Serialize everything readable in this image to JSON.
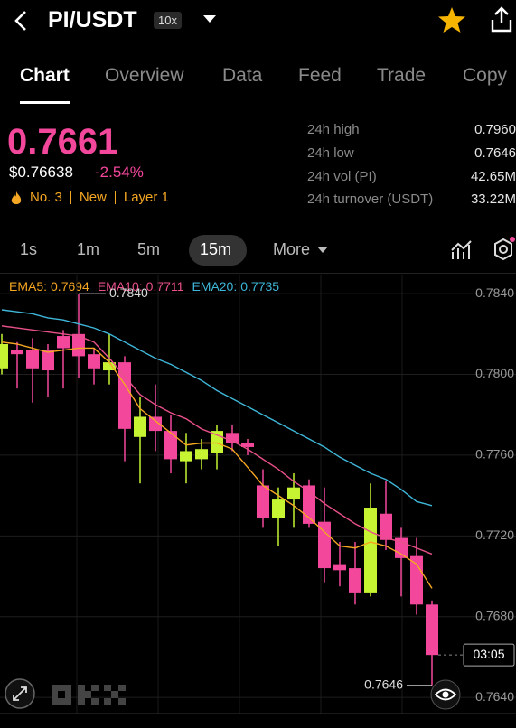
{
  "header": {
    "pair": "PI/USDT",
    "leverage": "10x"
  },
  "tabs": [
    "Chart",
    "Overview",
    "Data",
    "Feed",
    "Trade",
    "Copy"
  ],
  "price": {
    "last": "0.7661",
    "usd": "$0.76638",
    "change": "-2.54%",
    "tags": [
      "No. 3",
      "New",
      "Layer 1"
    ]
  },
  "stats": [
    {
      "label": "24h high",
      "value": "0.7960"
    },
    {
      "label": "24h low",
      "value": "0.7646"
    },
    {
      "label": "24h vol (PI)",
      "value": "42.65M"
    },
    {
      "label": "24h turnover (USDT)",
      "value": "33.22M"
    }
  ],
  "intervals": [
    "1s",
    "1m",
    "5m",
    "15m",
    "More"
  ],
  "chart_data": {
    "type": "candlestick",
    "up_color": "#c6f432",
    "down_color": "#f2479b",
    "open": [
      0.7803,
      0.7812,
      0.7812,
      0.7812,
      0.7819,
      0.782,
      0.781,
      0.7802,
      0.7806,
      0.7769,
      0.7779,
      0.7772,
      0.7757,
      0.7758,
      0.7761,
      0.7771,
      0.7766,
      0.7745,
      0.7729,
      0.7738,
      0.7745,
      0.7727,
      0.7706,
      0.7704,
      0.7692,
      0.7731,
      0.7719,
      0.771,
      0.7686
    ],
    "high": [
      0.782,
      0.7816,
      0.7818,
      0.7815,
      0.7822,
      0.784,
      0.7813,
      0.782,
      0.7809,
      0.7789,
      0.7795,
      0.778,
      0.7771,
      0.7768,
      0.7775,
      0.7775,
      0.7768,
      0.7753,
      0.7744,
      0.7751,
      0.7748,
      0.7744,
      0.7717,
      0.7717,
      0.7746,
      0.7747,
      0.7724,
      0.7719,
      0.7688
    ],
    "low": [
      0.78,
      0.7793,
      0.7786,
      0.7789,
      0.7793,
      0.7798,
      0.7795,
      0.7795,
      0.7757,
      0.7746,
      0.7762,
      0.7751,
      0.7746,
      0.7753,
      0.7753,
      0.7762,
      0.776,
      0.7724,
      0.7715,
      0.7724,
      0.7724,
      0.7697,
      0.7695,
      0.7686,
      0.769,
      0.7713,
      0.769,
      0.7681,
      0.7646
    ],
    "close": [
      0.7815,
      0.781,
      0.7803,
      0.7802,
      0.7813,
      0.7809,
      0.7803,
      0.7806,
      0.7773,
      0.7779,
      0.7772,
      0.7758,
      0.7762,
      0.7763,
      0.7772,
      0.7766,
      0.7764,
      0.7729,
      0.7738,
      0.7744,
      0.7726,
      0.7704,
      0.7703,
      0.7692,
      0.7734,
      0.7718,
      0.7709,
      0.7686,
      0.7661
    ],
    "series": [
      {
        "name": "EMA5:",
        "color": "#f5a623",
        "values": [
          0.7816,
          0.7815,
          0.7813,
          0.7811,
          0.7812,
          0.7813,
          0.7813,
          0.7806,
          0.7795,
          0.7783,
          0.7777,
          0.7771,
          0.7765,
          0.7766,
          0.7766,
          0.7763,
          0.7754,
          0.7745,
          0.774,
          0.7735,
          0.7729,
          0.7722,
          0.7715,
          0.7714,
          0.7717,
          0.7715,
          0.7711,
          0.7706,
          0.7694
        ]
      },
      {
        "name": "EMA10:",
        "color": "#e8508a",
        "values": [
          0.7824,
          0.7823,
          0.7822,
          0.7821,
          0.782,
          0.7819,
          0.7816,
          0.7808,
          0.7799,
          0.779,
          0.7785,
          0.7781,
          0.7778,
          0.7773,
          0.777,
          0.7767,
          0.7763,
          0.7758,
          0.7753,
          0.7747,
          0.7742,
          0.7736,
          0.7731,
          0.7726,
          0.7722,
          0.7719,
          0.7717,
          0.7714,
          0.7711
        ]
      },
      {
        "name": "EMA20:",
        "color": "#3fb6d8",
        "values": [
          0.7832,
          0.7831,
          0.783,
          0.7828,
          0.7827,
          0.7825,
          0.7823,
          0.782,
          0.7816,
          0.7812,
          0.7808,
          0.7805,
          0.7801,
          0.7797,
          0.7792,
          0.7788,
          0.7784,
          0.778,
          0.7776,
          0.7772,
          0.7768,
          0.7764,
          0.7759,
          0.7755,
          0.7751,
          0.7748,
          0.7743,
          0.7737,
          0.7735
        ]
      }
    ],
    "ylim": [
      0.7632,
      0.7849
    ],
    "yticks": [
      {
        "value": 0.784,
        "label": "0.7840"
      },
      {
        "value": 0.78,
        "label": "0.7800"
      },
      {
        "value": 0.776,
        "label": "0.7760"
      },
      {
        "value": 0.772,
        "label": "0.7720"
      },
      {
        "value": 0.768,
        "label": "0.7680"
      },
      {
        "value": 0.764,
        "label": "0.7640"
      }
    ],
    "grid": true,
    "high_label": "0.7840",
    "low_label": "0.7646",
    "countdown": "03:05"
  }
}
